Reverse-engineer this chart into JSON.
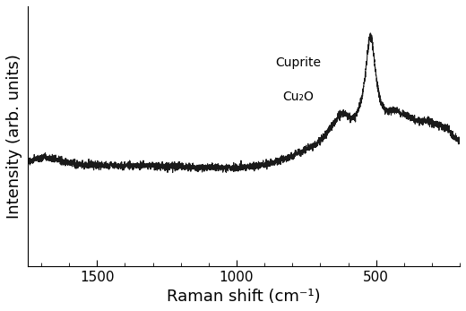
{
  "title": "",
  "xlabel": "Raman shift (cm⁻¹)",
  "ylabel": "Intensity (arb. units)",
  "annotation_line1": "Cuprite",
  "annotation_line2": "Cu₂O",
  "xlim": [
    1750,
    200
  ],
  "ylim_rel": [
    -0.05,
    1.15
  ],
  "line_color": "#1a1a1a",
  "line_width": 0.8,
  "background_color": "#ffffff",
  "tick_label_fontsize": 11,
  "axis_label_fontsize": 13,
  "xticks": [
    1500,
    1000,
    500
  ]
}
